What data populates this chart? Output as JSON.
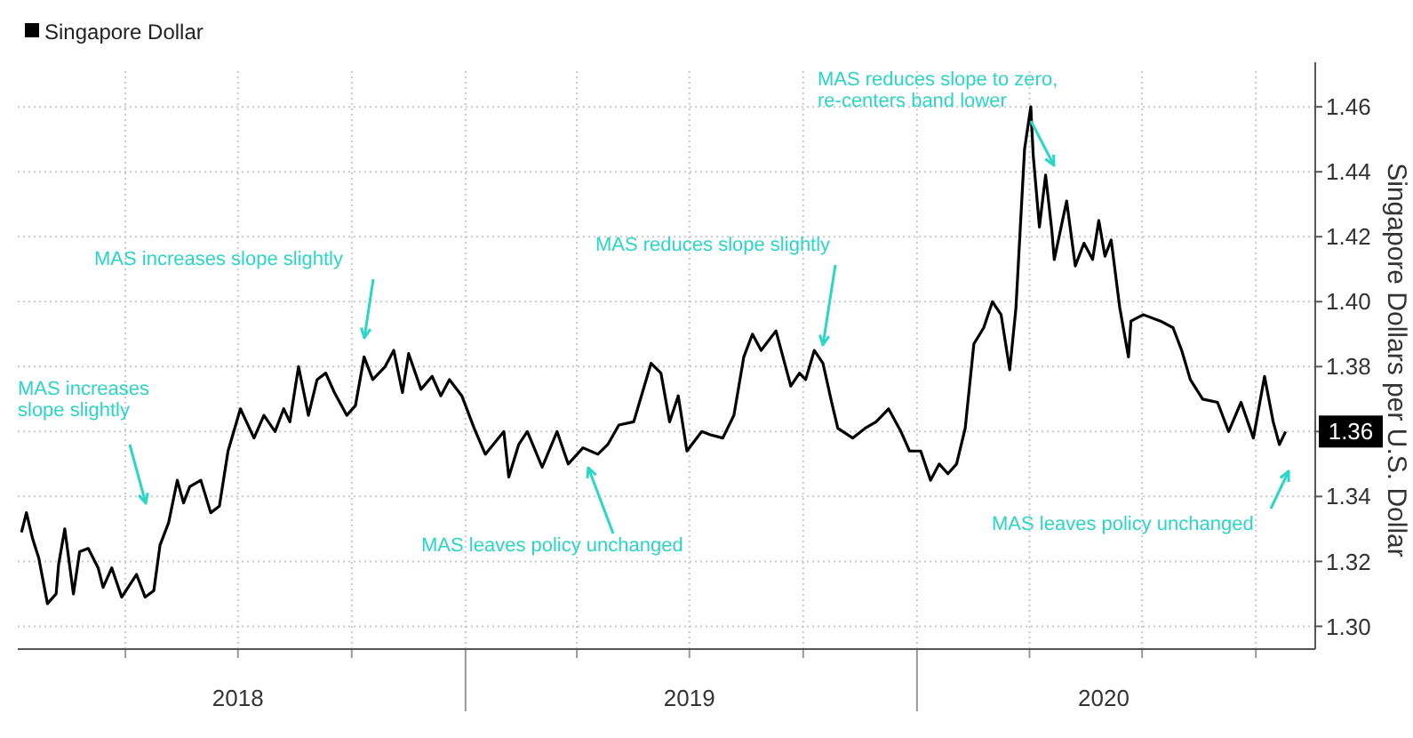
{
  "chart_data": {
    "type": "line",
    "ylabel": "Singapore Dollars per U.S. Dollar",
    "legend": "top left",
    "grid": true,
    "marker": "none",
    "line_style": "solid",
    "xlim": [
      "2018-01-04",
      "2020-11-18"
    ],
    "ylim": [
      1.293,
      1.471
    ],
    "yticks": [
      {
        "value": 1.3,
        "label": "1.30"
      },
      1.32,
      1.34,
      {
        "value": 1.36,
        "label": null
      },
      1.38,
      {
        "value": 1.4,
        "label": "1.40"
      },
      1.42,
      1.44,
      1.46
    ],
    "xticks": [
      {
        "value": "2018-04-01",
        "label": null
      },
      {
        "value": "2018-07-01",
        "label": null
      },
      {
        "value": "2018-10-01",
        "label": null
      },
      {
        "value": "2019-01-01",
        "label": null
      },
      {
        "value": "2019-04-01",
        "label": null
      },
      {
        "value": "2019-07-01",
        "label": null
      },
      {
        "value": "2019-10-01",
        "label": null
      },
      {
        "value": "2020-01-01",
        "label": null
      },
      {
        "value": "2020-04-01",
        "label": null
      },
      {
        "value": "2020-07-01",
        "label": null
      },
      {
        "value": "2020-10-01",
        "label": null
      },
      {
        "value": "2018-07-01",
        "label": "2018"
      },
      {
        "value": "2019-07-01",
        "label": "2019"
      },
      {
        "value": "2020-05-31",
        "label": "2020"
      }
    ],
    "annotations": [
      "MAS increases\nslope slightly",
      "MAS increases slope slightly",
      "MAS leaves policy unchanged",
      "MAS reduces slope slightly",
      "MAS reduces slope to zero,\nre-centers band lower",
      "MAS leaves policy unchanged"
    ],
    "series": [
      {
        "name": "Singapore Dollar",
        "color": "#000000",
        "x": [
          "2018-01-07",
          "2018-01-11",
          "2018-01-16",
          "2018-01-21",
          "2018-01-28",
          "2018-02-04",
          "2018-02-06",
          "2018-02-11",
          "2018-02-18",
          "2018-02-23",
          "2018-03-02",
          "2018-03-10",
          "2018-03-14",
          "2018-03-21",
          "2018-03-29",
          "2018-04-10",
          "2018-04-17",
          "2018-04-24",
          "2018-04-29",
          "2018-05-06",
          "2018-05-13",
          "2018-05-18",
          "2018-05-23",
          "2018-06-01",
          "2018-06-09",
          "2018-06-16",
          "2018-06-23",
          "2018-07-03",
          "2018-07-14",
          "2018-07-22",
          "2018-07-31",
          "2018-08-07",
          "2018-08-12",
          "2018-08-19",
          "2018-08-27",
          "2018-09-03",
          "2018-09-10",
          "2018-09-17",
          "2018-09-27",
          "2018-10-04",
          "2018-10-11",
          "2018-10-18",
          "2018-10-28",
          "2018-11-04",
          "2018-11-11",
          "2018-11-16",
          "2018-11-26",
          "2018-12-05",
          "2018-12-12",
          "2018-12-19",
          "2018-12-29",
          "2019-01-08",
          "2019-01-17",
          "2019-02-01",
          "2019-02-05",
          "2019-02-13",
          "2019-02-20",
          "2019-03-04",
          "2019-03-16",
          "2019-03-25",
          "2019-04-06",
          "2019-04-18",
          "2019-04-26",
          "2019-05-05",
          "2019-05-17",
          "2019-05-24",
          "2019-05-31",
          "2019-06-08",
          "2019-06-15",
          "2019-06-22",
          "2019-06-29",
          "2019-07-11",
          "2019-07-18",
          "2019-07-28",
          "2019-08-06",
          "2019-08-14",
          "2019-08-21",
          "2019-08-28",
          "2019-09-09",
          "2019-09-21",
          "2019-09-28",
          "2019-10-03",
          "2019-10-10",
          "2019-10-17",
          "2019-10-24",
          "2019-10-29",
          "2019-11-10",
          "2019-11-20",
          "2019-11-29",
          "2019-12-09",
          "2019-12-19",
          "2019-12-26",
          "2020-01-04",
          "2020-01-12",
          "2020-01-19",
          "2020-01-26",
          "2020-02-02",
          "2020-02-09",
          "2020-02-16",
          "2020-02-24",
          "2020-03-02",
          "2020-03-09",
          "2020-03-16",
          "2020-03-21",
          "2020-03-28",
          "2020-04-02",
          "2020-04-04",
          "2020-04-09",
          "2020-04-14",
          "2020-04-19",
          "2020-04-21",
          "2020-05-01",
          "2020-05-08",
          "2020-05-15",
          "2020-05-22",
          "2020-05-27",
          "2020-06-01",
          "2020-06-06",
          "2020-06-13",
          "2020-06-20",
          "2020-06-22",
          "2020-07-02",
          "2020-07-16",
          "2020-07-26",
          "2020-08-02",
          "2020-08-09",
          "2020-08-19",
          "2020-08-31",
          "2020-09-09",
          "2020-09-19",
          "2020-09-29",
          "2020-10-08",
          "2020-10-15",
          "2020-10-20",
          "2020-10-25"
        ],
        "values": [
          1.329,
          1.335,
          1.327,
          1.321,
          1.307,
          1.31,
          1.319,
          1.33,
          1.31,
          1.323,
          1.324,
          1.318,
          1.312,
          1.318,
          1.309,
          1.316,
          1.309,
          1.311,
          1.325,
          1.332,
          1.345,
          1.338,
          1.343,
          1.345,
          1.335,
          1.337,
          1.354,
          1.367,
          1.358,
          1.365,
          1.36,
          1.367,
          1.363,
          1.38,
          1.365,
          1.376,
          1.378,
          1.372,
          1.365,
          1.368,
          1.383,
          1.376,
          1.38,
          1.385,
          1.372,
          1.384,
          1.373,
          1.377,
          1.371,
          1.376,
          1.371,
          1.361,
          1.353,
          1.36,
          1.346,
          1.356,
          1.36,
          1.349,
          1.36,
          1.35,
          1.355,
          1.353,
          1.356,
          1.362,
          1.363,
          1.372,
          1.381,
          1.378,
          1.363,
          1.371,
          1.354,
          1.36,
          1.359,
          1.358,
          1.365,
          1.383,
          1.39,
          1.385,
          1.391,
          1.374,
          1.378,
          1.376,
          1.385,
          1.381,
          1.369,
          1.361,
          1.358,
          1.361,
          1.363,
          1.367,
          1.36,
          1.354,
          1.354,
          1.345,
          1.35,
          1.347,
          1.35,
          1.361,
          1.387,
          1.392,
          1.4,
          1.396,
          1.379,
          1.398,
          1.447,
          1.46,
          1.445,
          1.423,
          1.439,
          1.422,
          1.413,
          1.431,
          1.411,
          1.418,
          1.413,
          1.425,
          1.414,
          1.419,
          1.398,
          1.383,
          1.394,
          1.396,
          1.394,
          1.392,
          1.385,
          1.376,
          1.37,
          1.369,
          1.36,
          1.369,
          1.358,
          1.377,
          1.363,
          1.356,
          1.36
        ],
        "value_labels": [
          null,
          null,
          null,
          null,
          null,
          null,
          null,
          null,
          null,
          null,
          null,
          null,
          null,
          null,
          null,
          null,
          null,
          null,
          null,
          null,
          null,
          null,
          null,
          null,
          null,
          null,
          null,
          null,
          null,
          null,
          null,
          null,
          null,
          null,
          null,
          null,
          null,
          null,
          null,
          null,
          null,
          null,
          null,
          null,
          null,
          null,
          null,
          null,
          null,
          null,
          null,
          null,
          null,
          null,
          null,
          null,
          null,
          null,
          null,
          null,
          null,
          null,
          null,
          null,
          null,
          null,
          null,
          null,
          null,
          null,
          null,
          null,
          null,
          null,
          null,
          null,
          null,
          null,
          null,
          null,
          null,
          null,
          null,
          null,
          null,
          null,
          null,
          null,
          null,
          null,
          null,
          null,
          null,
          null,
          null,
          null,
          null,
          null,
          null,
          null,
          null,
          null,
          null,
          null,
          null,
          null,
          null,
          null,
          null,
          null,
          null,
          null,
          null,
          null,
          null,
          null,
          null,
          null,
          null,
          null,
          null,
          null,
          null,
          null,
          null,
          null,
          null,
          null,
          null,
          null,
          null,
          null,
          null,
          null,
          "1.36"
        ]
      }
    ]
  }
}
